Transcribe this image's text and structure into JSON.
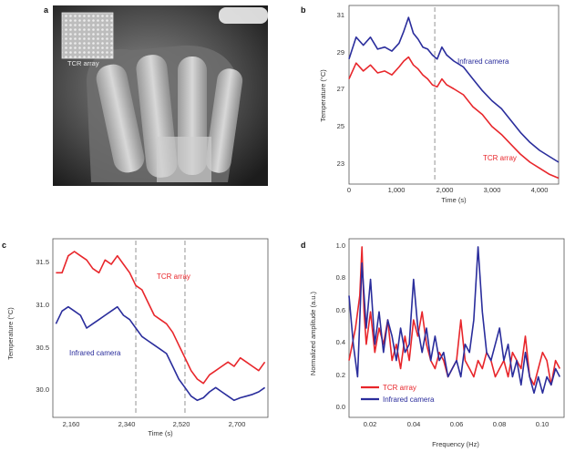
{
  "panels": {
    "a": {
      "letter": "a",
      "overlay_label": "TCR array"
    },
    "b": {
      "letter": "b",
      "ylabel": "Temperature (°C)",
      "xlabel": "Time (s)",
      "yticks": [
        "23",
        "25",
        "27",
        "29",
        "31"
      ],
      "xticks": [
        "0",
        "1,000",
        "2,000",
        "3,000",
        "4,000"
      ],
      "annotations": [
        "Infrared camera",
        "TCR array"
      ]
    },
    "c": {
      "letter": "c",
      "ylabel": "Temperature (°C)",
      "xlabel": "Time (s)",
      "yticks": [
        "30.0",
        "30.5",
        "31.0",
        "31.5"
      ],
      "xticks": [
        "2,160",
        "2,340",
        "2,520",
        "2,700"
      ],
      "annotations": [
        "TCR array",
        "Infrared camera"
      ]
    },
    "d": {
      "letter": "d",
      "ylabel": "Normalized amplitude (a.u.)",
      "xlabel": "Frequency (Hz)",
      "yticks": [
        "0.0",
        "0.2",
        "0.4",
        "0.6",
        "0.8",
        "1.0"
      ],
      "xticks": [
        "0.02",
        "0.04",
        "0.06",
        "0.08",
        "0.10"
      ],
      "legend": [
        "TCR array",
        "Infrared camera"
      ]
    }
  },
  "colors": {
    "tcr": "#e8262b",
    "ir": "#2a2d9c"
  },
  "chart_data": [
    {
      "panel": "b",
      "type": "line",
      "xlim": [
        0,
        4400
      ],
      "ylim": [
        22.3,
        31.3
      ],
      "dashed_x": [
        1800
      ],
      "series": [
        {
          "name": "Infrared camera",
          "color": "#2a2d9c",
          "x": [
            0,
            150,
            300,
            450,
            600,
            750,
            900,
            1050,
            1150,
            1250,
            1350,
            1450,
            1550,
            1650,
            1750,
            1850,
            1950,
            2050,
            2200,
            2400,
            2600,
            2800,
            3000,
            3200,
            3400,
            3600,
            3800,
            4000,
            4200,
            4400
          ],
          "y": [
            28.6,
            29.7,
            29.3,
            29.7,
            29.1,
            29.2,
            29.0,
            29.4,
            30.0,
            30.7,
            29.9,
            29.6,
            29.2,
            29.1,
            28.8,
            28.6,
            29.2,
            28.8,
            28.5,
            28.2,
            27.6,
            27.0,
            26.5,
            26.1,
            25.5,
            24.9,
            24.4,
            24.0,
            23.7,
            23.4
          ]
        },
        {
          "name": "TCR array",
          "color": "#e8262b",
          "x": [
            0,
            150,
            300,
            450,
            600,
            750,
            900,
            1050,
            1150,
            1250,
            1350,
            1450,
            1550,
            1650,
            1750,
            1850,
            1950,
            2050,
            2200,
            2400,
            2600,
            2800,
            3000,
            3200,
            3400,
            3600,
            3800,
            4000,
            4200,
            4400
          ],
          "y": [
            27.6,
            28.4,
            28.0,
            28.3,
            27.9,
            28.0,
            27.8,
            28.2,
            28.5,
            28.7,
            28.3,
            28.1,
            27.8,
            27.6,
            27.3,
            27.2,
            27.6,
            27.3,
            27.1,
            26.8,
            26.2,
            25.8,
            25.2,
            24.8,
            24.3,
            23.8,
            23.4,
            23.1,
            22.8,
            22.6
          ]
        }
      ]
    },
    {
      "panel": "c",
      "type": "line",
      "xlim": [
        2100,
        2800
      ],
      "ylim": [
        29.75,
        31.85
      ],
      "dashed_x": [
        2370,
        2530
      ],
      "series": [
        {
          "name": "TCR array",
          "color": "#e8262b",
          "x": [
            2110,
            2130,
            2150,
            2170,
            2190,
            2210,
            2230,
            2250,
            2270,
            2290,
            2310,
            2330,
            2350,
            2370,
            2390,
            2410,
            2430,
            2450,
            2470,
            2490,
            2510,
            2530,
            2550,
            2570,
            2590,
            2610,
            2630,
            2650,
            2670,
            2690,
            2710,
            2730,
            2750,
            2770,
            2790
          ],
          "y": [
            31.45,
            31.45,
            31.65,
            31.7,
            31.65,
            31.6,
            31.5,
            31.45,
            31.6,
            31.55,
            31.65,
            31.55,
            31.45,
            31.3,
            31.25,
            31.1,
            30.95,
            30.9,
            30.85,
            30.75,
            30.6,
            30.45,
            30.3,
            30.2,
            30.15,
            30.25,
            30.3,
            30.35,
            30.4,
            30.35,
            30.45,
            30.4,
            30.35,
            30.3,
            30.4
          ]
        },
        {
          "name": "Infrared camera",
          "color": "#2a2d9c",
          "x": [
            2110,
            2130,
            2150,
            2170,
            2190,
            2210,
            2230,
            2250,
            2270,
            2290,
            2310,
            2330,
            2350,
            2370,
            2390,
            2410,
            2430,
            2450,
            2470,
            2490,
            2510,
            2530,
            2550,
            2570,
            2590,
            2610,
            2630,
            2650,
            2670,
            2690,
            2710,
            2730,
            2750,
            2770,
            2790
          ],
          "y": [
            30.85,
            31.0,
            31.05,
            31.0,
            30.95,
            30.8,
            30.85,
            30.9,
            30.95,
            31.0,
            31.05,
            30.95,
            30.9,
            30.8,
            30.7,
            30.65,
            30.6,
            30.55,
            30.5,
            30.35,
            30.2,
            30.1,
            30.0,
            29.95,
            29.98,
            30.05,
            30.1,
            30.05,
            30.0,
            29.95,
            29.98,
            30.0,
            30.02,
            30.05,
            30.1
          ]
        }
      ]
    },
    {
      "panel": "d",
      "type": "line",
      "xlim": [
        0.01,
        0.11
      ],
      "ylim": [
        -0.05,
        1.05
      ],
      "series": [
        {
          "name": "TCR array",
          "color": "#e8262b",
          "x": [
            0.01,
            0.013,
            0.015,
            0.016,
            0.017,
            0.018,
            0.02,
            0.022,
            0.024,
            0.026,
            0.028,
            0.03,
            0.032,
            0.034,
            0.036,
            0.038,
            0.04,
            0.042,
            0.044,
            0.046,
            0.048,
            0.05,
            0.052,
            0.054,
            0.056,
            0.058,
            0.06,
            0.062,
            0.064,
            0.066,
            0.068,
            0.07,
            0.072,
            0.074,
            0.076,
            0.078,
            0.08,
            0.082,
            0.084,
            0.086,
            0.088,
            0.09,
            0.092,
            0.094,
            0.096,
            0.098,
            0.1,
            0.102,
            0.104,
            0.106,
            0.108
          ],
          "y": [
            0.3,
            0.5,
            0.7,
            1.0,
            0.6,
            0.4,
            0.6,
            0.35,
            0.5,
            0.4,
            0.55,
            0.3,
            0.4,
            0.25,
            0.45,
            0.3,
            0.55,
            0.45,
            0.6,
            0.4,
            0.3,
            0.25,
            0.35,
            0.3,
            0.2,
            0.25,
            0.3,
            0.55,
            0.3,
            0.25,
            0.2,
            0.3,
            0.25,
            0.35,
            0.3,
            0.2,
            0.25,
            0.3,
            0.2,
            0.35,
            0.3,
            0.25,
            0.45,
            0.2,
            0.15,
            0.25,
            0.35,
            0.3,
            0.15,
            0.3,
            0.25
          ]
        },
        {
          "name": "Infrared camera",
          "color": "#2a2d9c",
          "x": [
            0.01,
            0.012,
            0.014,
            0.016,
            0.018,
            0.02,
            0.022,
            0.024,
            0.026,
            0.028,
            0.03,
            0.032,
            0.034,
            0.036,
            0.038,
            0.04,
            0.042,
            0.044,
            0.046,
            0.048,
            0.05,
            0.052,
            0.054,
            0.056,
            0.058,
            0.06,
            0.062,
            0.064,
            0.066,
            0.068,
            0.07,
            0.072,
            0.074,
            0.076,
            0.078,
            0.08,
            0.082,
            0.084,
            0.086,
            0.088,
            0.09,
            0.092,
            0.094,
            0.096,
            0.098,
            0.1,
            0.102,
            0.104,
            0.106,
            0.108
          ],
          "y": [
            0.7,
            0.4,
            0.2,
            0.9,
            0.5,
            0.8,
            0.4,
            0.6,
            0.35,
            0.55,
            0.45,
            0.3,
            0.5,
            0.35,
            0.4,
            0.8,
            0.5,
            0.35,
            0.5,
            0.3,
            0.45,
            0.3,
            0.35,
            0.2,
            0.25,
            0.3,
            0.2,
            0.4,
            0.35,
            0.55,
            1.0,
            0.6,
            0.35,
            0.3,
            0.4,
            0.5,
            0.3,
            0.4,
            0.2,
            0.3,
            0.15,
            0.35,
            0.2,
            0.1,
            0.2,
            0.1,
            0.2,
            0.15,
            0.25,
            0.2
          ]
        }
      ]
    }
  ]
}
